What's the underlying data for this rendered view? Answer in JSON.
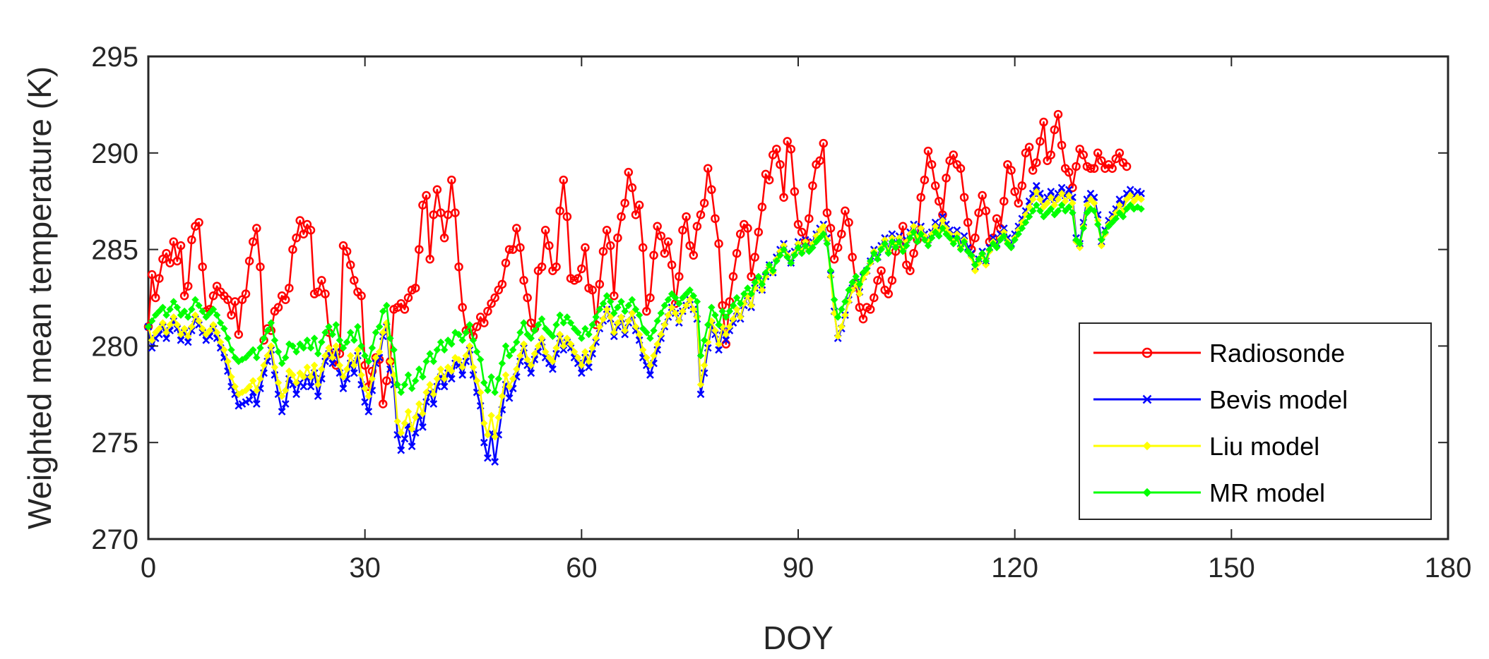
{
  "chart_data": {
    "type": "line",
    "title": "",
    "xlabel": "DOY",
    "ylabel": "Weighted mean temperature (K)",
    "xlim": [
      0,
      180
    ],
    "ylim": [
      270,
      295
    ],
    "x_ticks": [
      0,
      30,
      60,
      90,
      120,
      150,
      180
    ],
    "x_tick_labels": [
      "0",
      "30",
      "60",
      "90",
      "120",
      "150",
      "180"
    ],
    "y_ticks": [
      270,
      275,
      280,
      285,
      290,
      295
    ],
    "y_tick_labels": [
      "270",
      "275",
      "280",
      "285",
      "290",
      "295"
    ],
    "grid": false,
    "legend_position": "right",
    "x_start": 0,
    "x_step": 1,
    "samples_per_day": 2,
    "series": [
      {
        "name": "Radiosonde",
        "color": "#ff0000",
        "marker": "circle",
        "values": [
          281.0,
          283.7,
          282.5,
          283.5,
          284.5,
          284.8,
          284.3,
          285.4,
          284.4,
          285.2,
          282.6,
          283.1,
          285.5,
          286.2,
          286.4,
          284.1,
          281.8,
          281.9,
          282.6,
          283.1,
          282.8,
          282.6,
          282.4,
          281.6,
          282.3,
          280.6,
          282.4,
          282.7,
          284.4,
          285.4,
          286.1,
          284.1,
          280.3,
          280.9,
          280.8,
          281.8,
          282.0,
          282.6,
          282.4,
          283.0,
          285.0,
          285.6,
          286.5,
          285.8,
          286.3,
          286.0,
          282.7,
          282.8,
          283.4,
          282.7,
          280.7,
          279.5,
          279.0,
          279.6,
          285.2,
          284.9,
          284.2,
          283.4,
          282.8,
          282.6,
          279.0,
          277.9,
          278.7,
          279.4,
          279.3,
          277.0,
          278.2,
          279.2,
          281.9,
          282.0,
          282.2,
          281.9,
          282.5,
          282.9,
          283.0,
          285.0,
          287.3,
          287.8,
          284.5,
          286.8,
          288.1,
          286.9,
          285.6,
          286.8,
          288.6,
          286.9,
          284.1,
          282.0,
          280.8,
          280.9,
          280.5,
          281.0,
          281.5,
          281.2,
          281.8,
          282.2,
          282.5,
          282.9,
          283.2,
          284.3,
          285.0,
          285.0,
          286.1,
          285.1,
          283.4,
          282.5,
          281.2,
          280.9,
          283.9,
          284.1,
          286.0,
          285.2,
          283.9,
          284.1,
          287.0,
          288.6,
          286.7,
          283.5,
          283.4,
          283.5,
          284.0,
          285.1,
          283.0,
          282.9,
          281.1,
          283.2,
          284.9,
          286.0,
          285.2,
          282.6,
          285.6,
          286.7,
          287.4,
          289.0,
          288.2,
          286.8,
          287.3,
          285.1,
          281.8,
          282.5,
          284.7,
          286.2,
          285.7,
          284.8,
          285.4,
          284.2,
          282.2,
          283.6,
          286.0,
          286.7,
          285.2,
          284.7,
          286.2,
          286.8,
          287.4,
          289.2,
          288.1,
          286.6,
          285.3,
          282.1,
          280.1,
          282.3,
          283.6,
          284.8,
          285.8,
          286.3,
          286.1,
          283.6,
          284.6,
          285.9,
          287.2,
          288.9,
          288.6,
          289.9,
          290.2,
          289.4,
          287.7,
          290.6,
          290.2,
          288.0,
          286.3,
          285.9,
          285.4,
          286.6,
          288.3,
          289.4,
          289.6,
          290.5,
          286.9,
          286.1,
          284.5,
          285.1,
          285.8,
          287.0,
          286.4,
          284.6,
          283.2,
          282.0,
          281.4,
          282.0,
          281.9,
          282.5,
          283.4,
          283.9,
          282.9,
          282.7,
          283.4,
          284.9,
          285.3,
          286.2,
          284.2,
          283.9,
          284.8,
          285.5,
          287.7,
          288.6,
          290.1,
          289.4,
          288.3,
          287.5,
          286.8,
          288.7,
          289.6,
          289.9,
          289.4,
          289.2,
          287.7,
          286.4,
          285.0,
          285.6,
          286.9,
          287.8,
          287.0,
          285.4,
          285.6,
          286.6,
          286.1,
          287.5,
          289.4,
          289.1,
          288.0,
          287.4,
          288.3,
          290.0,
          290.3,
          289.1,
          289.5,
          290.6,
          291.6,
          289.6,
          289.9,
          291.2,
          292.0,
          290.4,
          289.2,
          289.0,
          288.2,
          289.3,
          290.2,
          289.9,
          289.3,
          289.2,
          289.2,
          290.0,
          289.6,
          289.2,
          289.4,
          289.2,
          289.7,
          290.0,
          289.5,
          289.3
        ]
      },
      {
        "name": "Bevis model",
        "color": "#0000ff",
        "marker": "x",
        "values": [
          281.0,
          279.9,
          280.4,
          280.6,
          281.0,
          280.4,
          280.8,
          281.3,
          280.9,
          280.3,
          280.7,
          280.2,
          280.8,
          281.4,
          281.1,
          280.7,
          280.3,
          280.5,
          280.9,
          280.4,
          279.9,
          279.4,
          278.7,
          277.9,
          277.5,
          276.9,
          277.0,
          277.1,
          277.2,
          277.6,
          277.0,
          277.8,
          278.6,
          279.2,
          279.8,
          278.5,
          277.5,
          276.6,
          277.0,
          278.3,
          278.0,
          277.5,
          278.1,
          277.9,
          278.4,
          277.9,
          278.6,
          277.4,
          278.3,
          279.2,
          279.6,
          279.1,
          279.7,
          278.6,
          277.8,
          278.3,
          279.1,
          278.6,
          279.5,
          278.0,
          277.1,
          276.6,
          277.7,
          279.1,
          279.4,
          280.5,
          281.0,
          278.8,
          278.0,
          275.4,
          274.6,
          275.2,
          275.9,
          274.8,
          275.5,
          276.4,
          275.8,
          277.1,
          277.6,
          277.0,
          277.9,
          278.4,
          277.9,
          278.6,
          278.3,
          279.1,
          279.0,
          278.5,
          279.2,
          279.8,
          278.5,
          277.6,
          276.9,
          275.0,
          274.2,
          275.5,
          274.0,
          275.4,
          276.7,
          278.0,
          277.3,
          277.8,
          278.4,
          279.2,
          279.9,
          279.0,
          278.6,
          279.3,
          279.7,
          280.2,
          279.4,
          279.1,
          278.8,
          279.6,
          280.4,
          279.8,
          280.2,
          279.9,
          279.4,
          279.1,
          278.6,
          279.4,
          278.9,
          279.6,
          280.2,
          280.9,
          281.3,
          281.9,
          281.4,
          280.5,
          281.0,
          281.4,
          280.6,
          281.2,
          281.6,
          280.8,
          280.3,
          279.4,
          279.0,
          278.5,
          279.1,
          279.8,
          280.4,
          281.0,
          281.5,
          282.0,
          281.7,
          281.2,
          281.8,
          282.1,
          282.4,
          281.9,
          281.4,
          277.5,
          278.6,
          279.9,
          281.1,
          280.6,
          279.8,
          280.8,
          280.3,
          280.8,
          281.2,
          281.8,
          281.4,
          282.1,
          282.6,
          282.0,
          283.0,
          283.4,
          282.9,
          283.6,
          284.2,
          283.8,
          284.6,
          285.0,
          285.3,
          284.8,
          284.3,
          284.9,
          285.4,
          285.0,
          285.5,
          285.1,
          285.4,
          285.8,
          286.1,
          286.3,
          285.6,
          283.7,
          281.8,
          280.4,
          280.9,
          281.6,
          282.4,
          283.0,
          283.3,
          282.8,
          283.6,
          283.9,
          284.4,
          285.0,
          284.6,
          285.2,
          285.6,
          285.0,
          285.8,
          285.3,
          285.7,
          285.1,
          285.5,
          285.9,
          286.3,
          285.7,
          286.2,
          285.8,
          285.5,
          285.9,
          286.4,
          286.1,
          286.7,
          286.3,
          286.0,
          285.6,
          286.0,
          285.3,
          285.7,
          285.1,
          284.8,
          284.1,
          284.5,
          284.9,
          284.4,
          285.1,
          285.6,
          285.3,
          285.8,
          286.1,
          285.6,
          285.3,
          285.8,
          286.2,
          286.6,
          287.0,
          287.5,
          287.9,
          288.3,
          287.9,
          287.5,
          287.7,
          288.0,
          287.6,
          287.9,
          288.2,
          287.8,
          288.1,
          287.7,
          285.6,
          285.3,
          286.4,
          287.6,
          287.9,
          287.7,
          286.8,
          285.4,
          286.0,
          286.5,
          286.8,
          287.1,
          287.6,
          287.3,
          287.9,
          288.1,
          287.8,
          288.0,
          287.9
        ]
      },
      {
        "name": "Liu model",
        "color": "#ffff00",
        "marker": "diamond",
        "values": [
          281.0,
          280.3,
          280.7,
          280.9,
          281.2,
          280.7,
          281.1,
          281.5,
          281.1,
          280.6,
          280.9,
          280.5,
          281.0,
          281.6,
          281.3,
          280.9,
          280.6,
          280.8,
          281.1,
          280.7,
          280.2,
          279.8,
          279.2,
          278.4,
          277.9,
          277.5,
          277.6,
          277.7,
          277.9,
          278.2,
          277.7,
          278.3,
          279.0,
          279.5,
          280.0,
          278.9,
          278.1,
          277.4,
          277.7,
          278.7,
          278.5,
          278.1,
          278.6,
          278.4,
          278.9,
          278.4,
          279.0,
          278.0,
          278.8,
          279.5,
          279.9,
          279.4,
          280.0,
          279.0,
          278.4,
          278.8,
          279.5,
          279.0,
          279.8,
          278.5,
          277.8,
          277.4,
          278.3,
          279.4,
          279.7,
          280.7,
          281.2,
          279.2,
          278.5,
          276.1,
          275.5,
          276.0,
          276.6,
          275.7,
          276.3,
          277.0,
          276.5,
          277.6,
          278.0,
          277.5,
          278.3,
          278.8,
          278.3,
          278.9,
          278.7,
          279.4,
          279.3,
          278.9,
          279.5,
          280.0,
          278.9,
          278.2,
          277.6,
          276.0,
          275.4,
          276.4,
          275.3,
          276.3,
          277.4,
          278.5,
          277.9,
          278.3,
          278.8,
          279.5,
          280.1,
          279.3,
          279.0,
          279.6,
          280.0,
          280.4,
          279.7,
          279.4,
          279.2,
          279.9,
          280.6,
          280.0,
          280.4,
          280.1,
          279.7,
          279.4,
          279.0,
          279.7,
          279.2,
          279.9,
          280.4,
          281.0,
          281.4,
          281.9,
          281.5,
          280.7,
          281.2,
          281.5,
          280.8,
          281.3,
          281.7,
          281.0,
          280.6,
          279.8,
          279.4,
          279.0,
          279.5,
          280.1,
          280.6,
          281.1,
          281.6,
          282.0,
          281.7,
          281.3,
          281.8,
          282.1,
          282.4,
          281.9,
          281.5,
          278.0,
          279.0,
          280.2,
          281.3,
          280.8,
          280.1,
          281.0,
          280.6,
          281.0,
          281.4,
          281.9,
          281.5,
          282.2,
          282.6,
          282.1,
          283.0,
          283.4,
          282.9,
          283.6,
          284.1,
          283.8,
          284.5,
          284.9,
          285.2,
          284.7,
          284.3,
          284.8,
          285.3,
          284.9,
          285.4,
          285.0,
          285.3,
          285.7,
          286.0,
          286.2,
          285.5,
          283.6,
          281.7,
          280.5,
          281.0,
          281.6,
          282.3,
          282.9,
          283.2,
          282.7,
          283.5,
          283.8,
          284.3,
          284.9,
          284.5,
          285.1,
          285.5,
          284.9,
          285.6,
          285.2,
          285.6,
          285.0,
          285.4,
          285.8,
          286.2,
          285.6,
          286.1,
          285.7,
          285.4,
          285.8,
          286.2,
          285.9,
          286.5,
          286.1,
          285.8,
          285.4,
          285.8,
          285.1,
          285.5,
          284.9,
          284.6,
          283.9,
          284.3,
          284.7,
          284.2,
          284.9,
          285.4,
          285.1,
          285.6,
          285.9,
          285.4,
          285.1,
          285.6,
          286.0,
          286.4,
          286.8,
          287.2,
          287.6,
          288.0,
          287.6,
          287.2,
          287.4,
          287.7,
          287.3,
          287.6,
          287.9,
          287.5,
          287.8,
          287.4,
          285.4,
          285.1,
          286.2,
          287.3,
          287.6,
          287.4,
          286.5,
          285.2,
          285.8,
          286.3,
          286.6,
          286.9,
          287.3,
          287.0,
          287.6,
          287.8,
          287.5,
          287.7,
          287.6
        ]
      },
      {
        "name": "MR model",
        "color": "#00ff00",
        "marker": "diamond",
        "values": [
          281.0,
          281.3,
          281.6,
          281.8,
          282.0,
          281.6,
          281.9,
          282.3,
          282.0,
          281.6,
          281.8,
          281.5,
          281.9,
          282.4,
          282.1,
          281.8,
          281.5,
          281.7,
          281.9,
          281.6,
          281.2,
          280.9,
          280.4,
          279.8,
          279.4,
          279.2,
          279.3,
          279.4,
          279.6,
          279.8,
          279.4,
          279.9,
          280.4,
          280.8,
          281.2,
          280.3,
          279.7,
          279.1,
          279.4,
          280.1,
          280.0,
          279.7,
          280.1,
          279.9,
          280.3,
          279.9,
          280.4,
          279.6,
          280.2,
          280.7,
          281.0,
          280.6,
          281.1,
          280.3,
          279.9,
          280.2,
          280.7,
          280.3,
          281.0,
          280.0,
          279.5,
          279.2,
          279.9,
          280.7,
          281.0,
          281.8,
          282.1,
          280.4,
          279.8,
          278.0,
          277.6,
          278.0,
          278.5,
          277.8,
          278.2,
          278.8,
          278.4,
          279.2,
          279.6,
          279.2,
          279.8,
          280.2,
          279.8,
          280.3,
          280.1,
          280.7,
          280.6,
          280.3,
          280.7,
          281.1,
          280.3,
          279.7,
          279.3,
          278.1,
          277.7,
          278.4,
          277.6,
          278.3,
          279.1,
          280.0,
          279.5,
          279.8,
          280.2,
          280.7,
          281.2,
          280.6,
          280.4,
          280.8,
          281.1,
          281.4,
          280.9,
          280.7,
          280.5,
          281.1,
          281.6,
          281.2,
          281.5,
          281.2,
          280.9,
          280.7,
          280.4,
          280.9,
          280.6,
          281.1,
          281.5,
          281.9,
          282.2,
          282.6,
          282.3,
          281.7,
          282.0,
          282.3,
          281.8,
          282.1,
          282.4,
          281.9,
          281.6,
          280.9,
          280.7,
          280.4,
          280.8,
          281.3,
          281.7,
          282.1,
          282.4,
          282.7,
          282.5,
          282.2,
          282.5,
          282.7,
          282.9,
          282.6,
          282.3,
          279.5,
          280.3,
          281.1,
          282.0,
          281.6,
          281.1,
          281.8,
          281.5,
          281.8,
          282.1,
          282.5,
          282.2,
          282.7,
          283.0,
          282.7,
          283.3,
          283.6,
          283.2,
          283.8,
          284.2,
          283.9,
          284.4,
          284.7,
          285.0,
          284.6,
          284.3,
          284.7,
          285.1,
          284.8,
          285.2,
          284.9,
          285.1,
          285.4,
          285.6,
          285.8,
          285.3,
          283.9,
          282.4,
          281.5,
          281.9,
          282.3,
          282.9,
          283.3,
          283.6,
          283.2,
          283.8,
          284.0,
          284.4,
          284.8,
          284.5,
          285.0,
          285.3,
          284.8,
          285.4,
          285.1,
          285.4,
          284.9,
          285.2,
          285.6,
          285.9,
          285.4,
          285.8,
          285.5,
          285.2,
          285.6,
          285.9,
          285.7,
          286.1,
          285.8,
          285.6,
          285.3,
          285.6,
          285.0,
          285.4,
          284.9,
          284.7,
          284.2,
          284.5,
          284.8,
          284.4,
          285.0,
          285.3,
          285.1,
          285.5,
          285.7,
          285.3,
          285.1,
          285.5,
          285.8,
          286.1,
          286.4,
          286.7,
          287.0,
          287.3,
          287.0,
          286.7,
          286.9,
          287.1,
          286.8,
          287.0,
          287.3,
          287.0,
          287.2,
          286.9,
          285.5,
          285.3,
          286.1,
          286.9,
          287.1,
          287.0,
          286.3,
          285.5,
          285.9,
          286.2,
          286.4,
          286.6,
          286.9,
          286.7,
          287.1,
          287.3,
          287.1,
          287.2,
          287.1
        ]
      }
    ]
  }
}
